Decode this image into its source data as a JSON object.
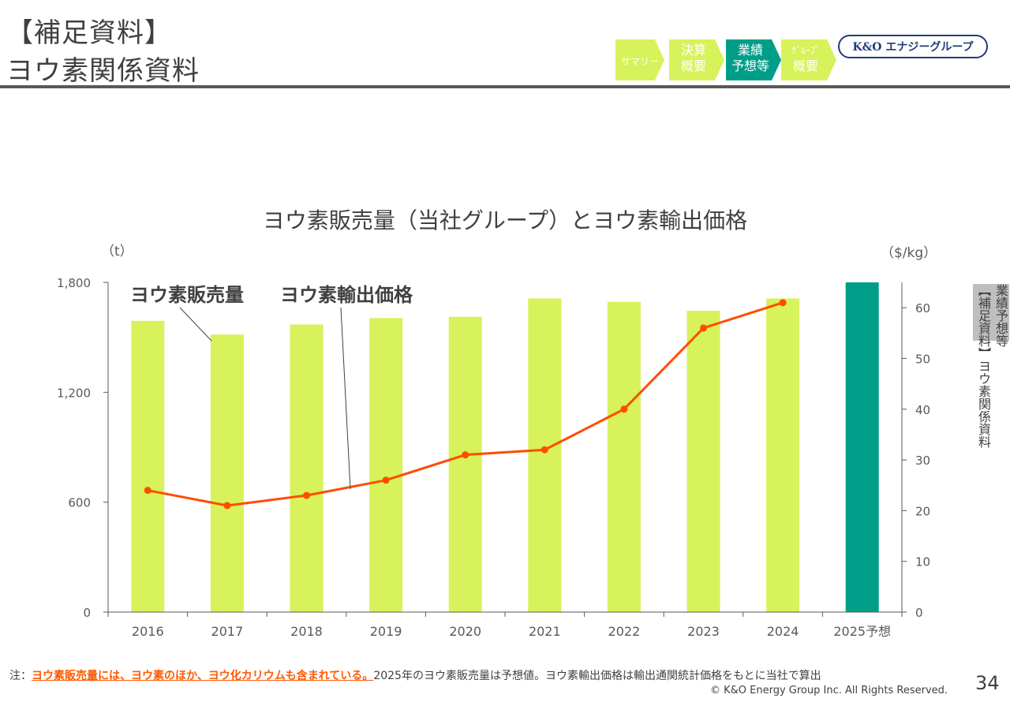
{
  "header": {
    "title_line1": "【補足資料】",
    "title_line2": "ヨウ素関係資料"
  },
  "nav": [
    {
      "label_l1": "サマリー",
      "label_l2": "",
      "active": false
    },
    {
      "label_l1": "決算",
      "label_l2": "概要",
      "active": false
    },
    {
      "label_l1": "業績",
      "label_l2": "予想等",
      "active": true
    },
    {
      "label_l1": "ｸﾞﾙｰﾌﾟ",
      "label_l2": "概要",
      "active": false
    }
  ],
  "logo": "K&O エナジーグループ",
  "colors": {
    "bar": "#d7f25a",
    "bar_forecast": "#009e88",
    "line": "#ff4d00",
    "nav": "#d7f25a",
    "nav_active": "#009e88"
  },
  "side_tab": {
    "top": "業績予想等",
    "bottom": "【補足資料】ヨウ素関係資料"
  },
  "chart_data": {
    "type": "bar",
    "title": "ヨウ素販売量（当社グループ）とヨウ素輸出価格",
    "ylabel": "（t）",
    "y2label": "（$/kg）",
    "ylim": [
      0,
      1800
    ],
    "y2lim": [
      0,
      65
    ],
    "yticks": [
      "1,800",
      "1,200",
      "600",
      "0"
    ],
    "y2ticks": [
      "60",
      "50",
      "40",
      "30",
      "20",
      "10",
      "0"
    ],
    "categories": [
      "2016",
      "2017",
      "2018",
      "2019",
      "2020",
      "2021",
      "2022",
      "2023",
      "2024",
      "2025予想"
    ],
    "series": [
      {
        "name": "ヨウ素販売量",
        "type": "bar",
        "axis": "left",
        "values": [
          1590,
          1515,
          1570,
          1605,
          1612,
          1712,
          1694,
          1645,
          1712,
          1800
        ]
      },
      {
        "name": "ヨウ素輸出価格",
        "type": "line",
        "axis": "right",
        "values": [
          24,
          21,
          23,
          26,
          31,
          32,
          40,
          56,
          61,
          null
        ]
      }
    ],
    "grid": false
  },
  "footer": {
    "note_prefix": "注：",
    "note_emphasis": "ヨウ素販売量には、ヨウ素のほか、ヨウ化カリウムも含まれている。",
    "note_rest": "2025年のヨウ素販売量は予想値。ヨウ素輸出価格は輸出通関統計価格をもとに当社で算出",
    "copyright": "© K&O Energy Group Inc. All Rights Reserved.",
    "page": "34"
  }
}
